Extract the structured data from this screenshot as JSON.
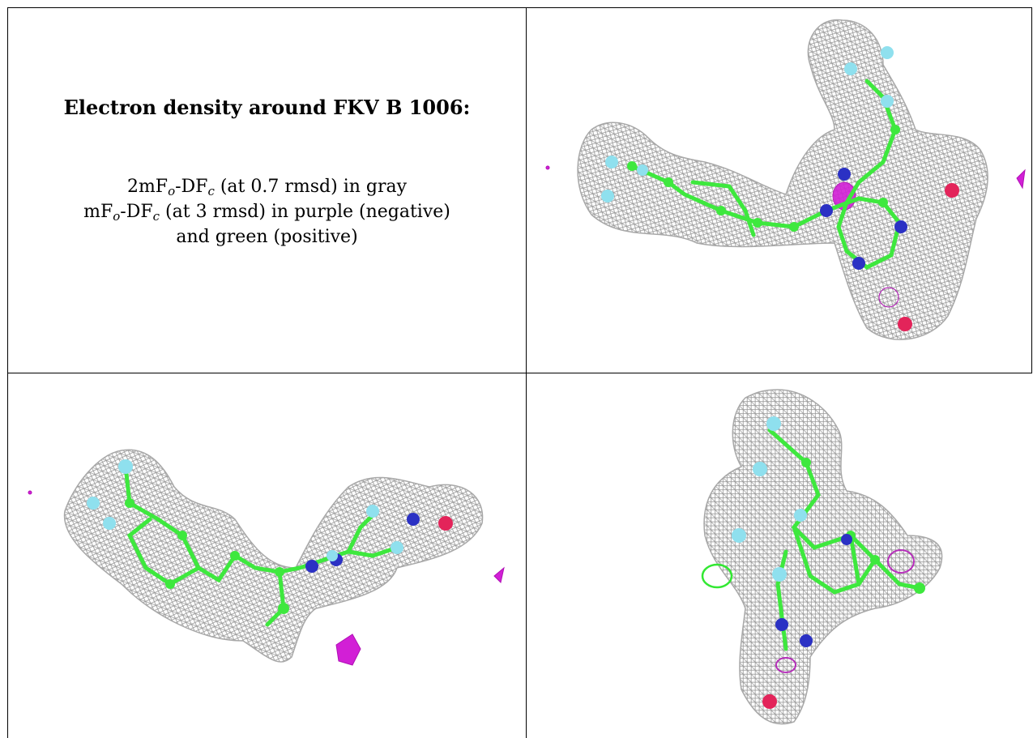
{
  "caption": {
    "title": "Electron density around FKV B 1006:",
    "line1": {
      "a": "2mF",
      "o": "o",
      "b": "-DF",
      "c": "c",
      "rest": " (at 0.7 rmsd) in gray"
    },
    "line2": {
      "a": "mF",
      "o": "o",
      "b": "-DF",
      "c": "c",
      "rest": " (at 3 rmsd) in purple (negative)"
    },
    "line3": "and green (positive)"
  },
  "colors": {
    "density_2fofc": "#9a9a9a",
    "density_negative": "#d21fd6",
    "density_positive": "#33e833",
    "carbon": "#3ee83e",
    "nitrogen": "#2b31c4",
    "oxygen": "#e3245a",
    "fluorine": "#8fe0ee"
  },
  "panels": [
    {
      "name": "view-top-right",
      "icon": "molecule-density-view-icon"
    },
    {
      "name": "view-bottom-left",
      "icon": "molecule-density-view-icon"
    },
    {
      "name": "view-bottom-right",
      "icon": "molecule-density-view-icon"
    }
  ]
}
